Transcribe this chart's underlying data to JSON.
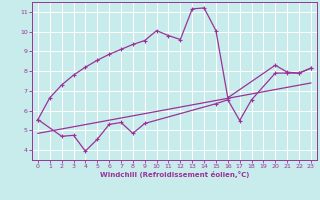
{
  "xlabel": "Windchill (Refroidissement éolien,°C)",
  "bg_color": "#c8ecec",
  "line_color": "#993399",
  "grid_color": "#ffffff",
  "curve1_x": [
    0,
    1,
    2,
    3,
    4,
    5,
    6,
    7,
    8,
    9,
    10,
    11,
    12,
    13,
    14,
    15,
    16,
    20,
    21,
    22,
    23
  ],
  "curve1_y": [
    5.55,
    6.65,
    7.3,
    7.8,
    8.2,
    8.55,
    8.85,
    9.1,
    9.35,
    9.55,
    10.05,
    9.8,
    9.6,
    11.15,
    11.2,
    10.05,
    6.65,
    8.3,
    7.95,
    7.9,
    8.15
  ],
  "curve2_x": [
    0,
    2,
    3,
    4,
    5,
    6,
    7,
    8,
    9,
    15,
    16,
    17,
    18,
    20,
    21,
    22,
    23
  ],
  "curve2_y": [
    5.55,
    4.7,
    4.75,
    3.95,
    4.55,
    5.3,
    5.4,
    4.85,
    5.35,
    6.35,
    6.55,
    5.5,
    6.55,
    7.9,
    7.9,
    7.9,
    8.15
  ],
  "trend_x": [
    0,
    23
  ],
  "trend_y": [
    4.85,
    7.4
  ],
  "ylim": [
    3.5,
    11.5
  ],
  "xlim": [
    -0.5,
    23.5
  ],
  "yticks": [
    4,
    5,
    6,
    7,
    8,
    9,
    10,
    11
  ],
  "xticks": [
    0,
    1,
    2,
    3,
    4,
    5,
    6,
    7,
    8,
    9,
    10,
    11,
    12,
    13,
    14,
    15,
    16,
    17,
    18,
    19,
    20,
    21,
    22,
    23
  ]
}
